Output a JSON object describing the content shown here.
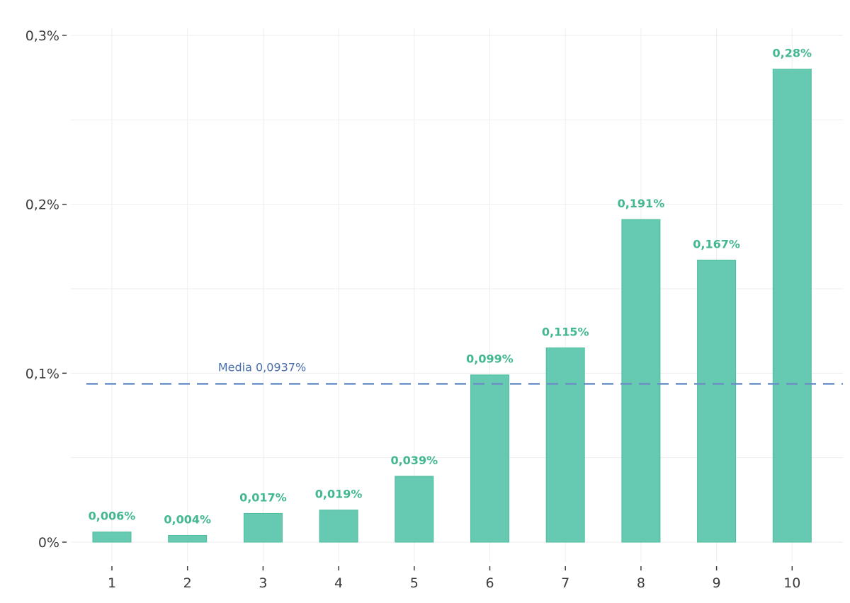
{
  "chart_data": {
    "type": "bar",
    "categories": [
      "1",
      "2",
      "3",
      "4",
      "5",
      "6",
      "7",
      "8",
      "9",
      "10"
    ],
    "values": [
      0.006,
      0.004,
      0.017,
      0.019,
      0.039,
      0.099,
      0.115,
      0.191,
      0.167,
      0.28
    ],
    "data_labels": [
      "0,006%",
      "0,004%",
      "0,017%",
      "0,019%",
      "0,039%",
      "0,099%",
      "0,115%",
      "0,191%",
      "0,167%",
      "0,28%"
    ],
    "y_ticks": [
      0,
      0.1,
      0.2,
      0.3
    ],
    "y_tick_labels": [
      "0%",
      "0,1%",
      "0,2%",
      "0,3%"
    ],
    "ylim": [
      0,
      0.3
    ],
    "title": "",
    "xlabel": "",
    "ylabel": "",
    "grid": true,
    "reference_line": {
      "value": 0.0937,
      "label": "Media 0,0937%",
      "style": "dashed"
    },
    "colors": {
      "bar_fill": "#66c9b1",
      "bar_stroke": "#4dbd9c",
      "data_label": "#43b88f",
      "mean_line": "#6b8fc7",
      "mean_label": "#4a70b0",
      "grid": "#eeeeee",
      "tick_text": "#3d3d3d"
    }
  }
}
